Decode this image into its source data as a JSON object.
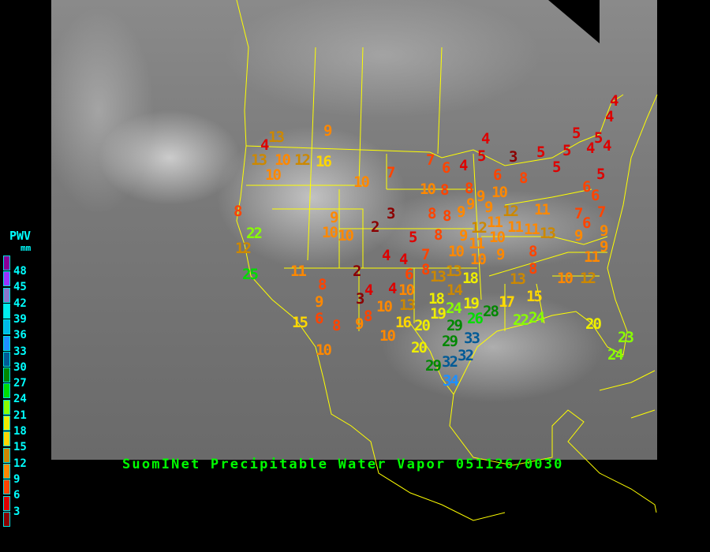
{
  "title": "SuomINet Precipitable Water Vapor 051126/0030",
  "legend": {
    "title": "PWV",
    "unit": "mm",
    "labels": [
      "48",
      "45",
      "42",
      "39",
      "36",
      "33",
      "30",
      "27",
      "24",
      "21",
      "18",
      "15",
      "12",
      "9",
      "6",
      "3"
    ],
    "colors_top_to_bottom": [
      "#880099",
      "#9933ff",
      "#8877cc",
      "#00eeee",
      "#00b8e8",
      "#1e90ff",
      "#005a96",
      "#008800",
      "#00dd00",
      "#88ff00",
      "#eeee00",
      "#ffd700",
      "#cc8800",
      "#ff8800",
      "#ff4400",
      "#dd0000",
      "#8b0000"
    ]
  },
  "colors": {
    "borders": "#ffff00",
    "title": "#00ff00",
    "legend_text": "#00ffff"
  },
  "stations": [
    "13",
    "4",
    "13",
    "10",
    "12",
    "16",
    "10",
    "9",
    "7",
    "10",
    "8",
    "3",
    "22",
    "12",
    "25",
    "9",
    "10",
    "10",
    "2",
    "4",
    "2",
    "11",
    "8",
    "4",
    "5",
    "3",
    "5",
    "5",
    "5",
    "5",
    "4",
    "5",
    "4",
    "4",
    "4",
    "5",
    "6",
    "6",
    "7",
    "6",
    "7",
    "9",
    "9",
    "11",
    "9",
    "7",
    "6",
    "4",
    "6",
    "8",
    "10",
    "8",
    "8",
    "9",
    "10",
    "9",
    "9",
    "8",
    "8",
    "9",
    "12",
    "11",
    "11",
    "11",
    "12",
    "11",
    "13",
    "10",
    "11",
    "8",
    "9",
    "5",
    "10",
    "10",
    "9",
    "8",
    "8",
    "7",
    "8",
    "4",
    "6",
    "13",
    "13",
    "14",
    "18",
    "13",
    "10",
    "12",
    "4",
    "3",
    "4",
    "10",
    "9",
    "10",
    "13",
    "18",
    "19",
    "6",
    "15",
    "8",
    "8",
    "9",
    "16",
    "20",
    "19",
    "24",
    "26",
    "28",
    "29",
    "29",
    "33",
    "10",
    "10",
    "20",
    "32",
    "32",
    "29",
    "34",
    "17",
    "22",
    "24",
    "15",
    "20",
    "23",
    "24"
  ]
}
